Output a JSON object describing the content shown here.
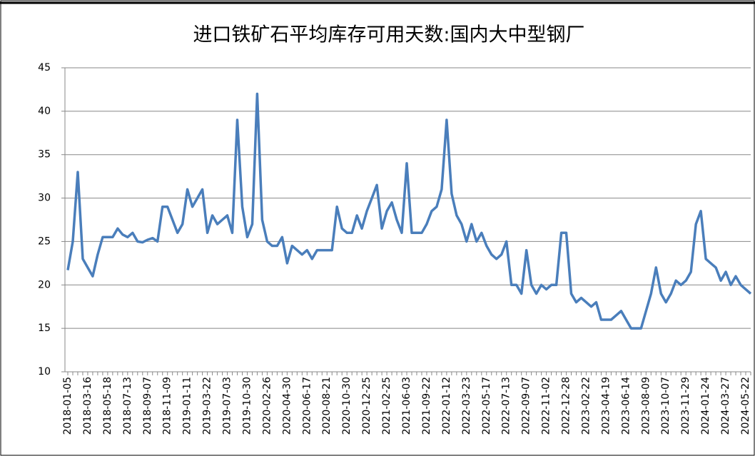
{
  "chart_data": {
    "type": "line",
    "title": "进口铁矿石平均库存可用天数:国内大中型钢厂",
    "categories": [
      "2018-01-05",
      null,
      null,
      null,
      "2018-03-16",
      null,
      null,
      null,
      "2018-05-18",
      null,
      null,
      null,
      "2018-07-13",
      null,
      null,
      null,
      "2018-09-07",
      null,
      null,
      null,
      "2018-11-09",
      null,
      null,
      null,
      "2019-01-11",
      null,
      null,
      null,
      "2019-03-22",
      null,
      null,
      null,
      "2019-07-03",
      null,
      null,
      null,
      "2019-10-30",
      null,
      null,
      null,
      "2020-02-26",
      null,
      null,
      null,
      "2020-04-30",
      null,
      null,
      null,
      "2020-06-17",
      null,
      null,
      null,
      "2020-08-21",
      null,
      null,
      null,
      "2020-10-30",
      null,
      null,
      null,
      "2020-12-25",
      null,
      null,
      null,
      "2021-02-25",
      null,
      null,
      null,
      "2021-06-03",
      null,
      null,
      null,
      "2021-09-22",
      null,
      null,
      null,
      "2022-01-12",
      null,
      null,
      null,
      "2022-03-23",
      null,
      null,
      null,
      "2022-05-17",
      null,
      null,
      null,
      "2022-07-13",
      null,
      null,
      null,
      "2022-09-07",
      null,
      null,
      null,
      "2022-11-02",
      null,
      null,
      null,
      "2022-12-28",
      null,
      null,
      null,
      "2023-02-22",
      null,
      null,
      null,
      "2023-04-19",
      null,
      null,
      null,
      "2023-06-14",
      null,
      null,
      null,
      "2023-08-09",
      null,
      null,
      null,
      "2023-10-07",
      null,
      null,
      null,
      "2023-11-29",
      null,
      null,
      null,
      "2024-01-24",
      null,
      null,
      null,
      "2024-03-27",
      null,
      null,
      null,
      "2024-05-22",
      null
    ],
    "values": [
      21.7,
      25,
      33,
      23,
      22,
      21,
      23.5,
      25.5,
      25.5,
      25.5,
      26.5,
      25.8,
      25.5,
      26,
      25,
      24.9,
      25.2,
      25.4,
      25,
      29,
      29,
      27.5,
      26,
      27,
      31,
      29,
      30,
      31,
      26,
      28,
      27,
      27.5,
      28,
      26,
      39,
      29,
      25.5,
      27,
      42,
      27.5,
      25,
      24.5,
      24.5,
      25.5,
      22.5,
      24.5,
      24,
      23.5,
      24,
      23,
      24,
      24,
      24,
      24,
      29,
      26.5,
      26,
      26,
      28,
      26.5,
      28.5,
      30,
      31.5,
      26.5,
      28.5,
      29.5,
      27.5,
      26,
      34,
      26,
      26,
      26,
      27,
      28.5,
      29,
      31,
      39,
      30.5,
      28,
      27,
      25,
      27,
      25,
      26,
      24.5,
      23.5,
      23,
      23.5,
      25,
      20,
      20,
      19,
      24,
      20,
      19,
      20,
      19.5,
      20,
      20,
      26,
      26,
      19,
      18,
      18.5,
      18,
      17.5,
      18,
      16,
      16,
      16,
      16.5,
      17,
      16,
      15,
      15,
      15,
      17,
      19,
      22,
      19,
      18,
      19,
      20.5,
      20,
      20.5,
      21.5,
      27,
      28.5,
      23,
      22.5,
      22,
      20.5,
      21.5,
      20,
      21,
      20,
      19.5,
      19
    ],
    "color": "#4a7ebb",
    "ylim": [
      10,
      45
    ],
    "yticks": [
      10,
      15,
      20,
      25,
      30,
      35,
      40,
      45
    ],
    "grid": true
  }
}
